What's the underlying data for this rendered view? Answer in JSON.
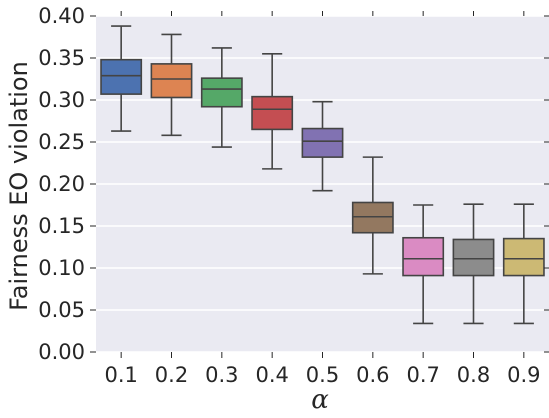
{
  "chart_data": {
    "type": "box",
    "xlabel": "α",
    "ylabel": "Fairness EO violation",
    "ylim": [
      0,
      0.4
    ],
    "yticks": [
      "0.00",
      "0.05",
      "0.10",
      "0.15",
      "0.20",
      "0.25",
      "0.30",
      "0.35",
      "0.40"
    ],
    "categories": [
      "0.1",
      "0.2",
      "0.3",
      "0.4",
      "0.5",
      "0.6",
      "0.7",
      "0.8",
      "0.9"
    ],
    "boxes": [
      {
        "category": "0.1",
        "whislo": 0.263,
        "q1": 0.307,
        "med": 0.329,
        "q3": 0.348,
        "whishi": 0.388,
        "color": "#4C72B0"
      },
      {
        "category": "0.2",
        "whislo": 0.258,
        "q1": 0.303,
        "med": 0.325,
        "q3": 0.343,
        "whishi": 0.378,
        "color": "#DD8452"
      },
      {
        "category": "0.3",
        "whislo": 0.244,
        "q1": 0.292,
        "med": 0.313,
        "q3": 0.326,
        "whishi": 0.362,
        "color": "#55A868"
      },
      {
        "category": "0.4",
        "whislo": 0.218,
        "q1": 0.265,
        "med": 0.289,
        "q3": 0.304,
        "whishi": 0.355,
        "color": "#C44E52"
      },
      {
        "category": "0.5",
        "whislo": 0.192,
        "q1": 0.232,
        "med": 0.251,
        "q3": 0.266,
        "whishi": 0.298,
        "color": "#8172B2"
      },
      {
        "category": "0.6",
        "whislo": 0.093,
        "q1": 0.142,
        "med": 0.161,
        "q3": 0.178,
        "whishi": 0.232,
        "color": "#937860"
      },
      {
        "category": "0.7",
        "whislo": 0.034,
        "q1": 0.091,
        "med": 0.111,
        "q3": 0.136,
        "whishi": 0.175,
        "color": "#DA8BC3"
      },
      {
        "category": "0.8",
        "whislo": 0.034,
        "q1": 0.091,
        "med": 0.111,
        "q3": 0.134,
        "whishi": 0.176,
        "color": "#8C8C8C"
      },
      {
        "category": "0.9",
        "whislo": 0.034,
        "q1": 0.091,
        "med": 0.111,
        "q3": 0.135,
        "whishi": 0.176,
        "color": "#CCB974"
      }
    ],
    "background_color": "#EAEAF2",
    "grid": true,
    "grid_axis": "y"
  }
}
